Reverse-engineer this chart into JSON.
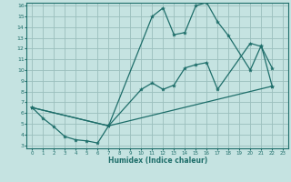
{
  "xlabel": "Humidex (Indice chaleur)",
  "xlim": [
    0,
    23
  ],
  "ylim": [
    3,
    16
  ],
  "xticks": [
    0,
    1,
    2,
    3,
    4,
    5,
    6,
    7,
    8,
    9,
    10,
    11,
    12,
    13,
    14,
    15,
    16,
    17,
    18,
    19,
    20,
    21,
    22,
    23
  ],
  "yticks": [
    3,
    4,
    5,
    6,
    7,
    8,
    9,
    10,
    11,
    12,
    13,
    14,
    15,
    16
  ],
  "bg_color": "#c5e3e1",
  "grid_color": "#9bbfbd",
  "line_color": "#1e6e6a",
  "line2_x": [
    0,
    7,
    11,
    12,
    13,
    14,
    15,
    16,
    17,
    18,
    20,
    21,
    22
  ],
  "line2_y": [
    6.5,
    4.8,
    15.0,
    15.8,
    13.3,
    13.5,
    16.0,
    16.3,
    14.5,
    13.2,
    10.0,
    12.3,
    8.5
  ],
  "line1_x": [
    0,
    1,
    2,
    3,
    4,
    5,
    6,
    7,
    10,
    11,
    12,
    13,
    14,
    15,
    16,
    17,
    20,
    21,
    22
  ],
  "line1_y": [
    6.5,
    5.5,
    4.7,
    3.8,
    3.5,
    3.4,
    3.2,
    4.8,
    8.2,
    8.8,
    8.2,
    8.6,
    10.2,
    10.5,
    10.7,
    8.2,
    12.5,
    12.2,
    10.2
  ],
  "line3_x": [
    0,
    7,
    22
  ],
  "line3_y": [
    6.5,
    4.8,
    8.5
  ]
}
